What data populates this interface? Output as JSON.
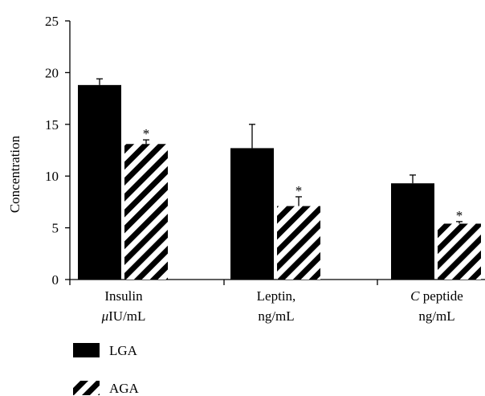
{
  "chart_data": {
    "type": "bar",
    "title": "",
    "xlabel": "",
    "ylabel": "Concentration",
    "ylim": [
      0,
      25
    ],
    "yticks": [
      0,
      5,
      10,
      15,
      20,
      25
    ],
    "grid": false,
    "legend_position": "bottom-left",
    "categories": [
      {
        "line1_prefix": "",
        "line1": "Insulin",
        "line2_prefix": "μ",
        "line2": "IU/mL"
      },
      {
        "line1_prefix": "",
        "line1": "Leptin,",
        "line2_prefix": "",
        "line2": "ng/mL"
      },
      {
        "line1_prefix": "C",
        "line1": " peptide",
        "line2_prefix": "",
        "line2": "ng/mL"
      }
    ],
    "series": [
      {
        "name": "LGA",
        "fill": "solid",
        "color": "#000000",
        "values": [
          18.8,
          12.7,
          9.3
        ],
        "errors": [
          0.6,
          2.3,
          0.8
        ],
        "significance": [
          "",
          "",
          ""
        ]
      },
      {
        "name": "AGA",
        "fill": "hatched",
        "color": "#000000",
        "values": [
          13.1,
          7.1,
          5.4
        ],
        "errors": [
          0.4,
          0.9,
          0.2
        ],
        "significance": [
          "*",
          "*",
          "*"
        ]
      }
    ]
  }
}
